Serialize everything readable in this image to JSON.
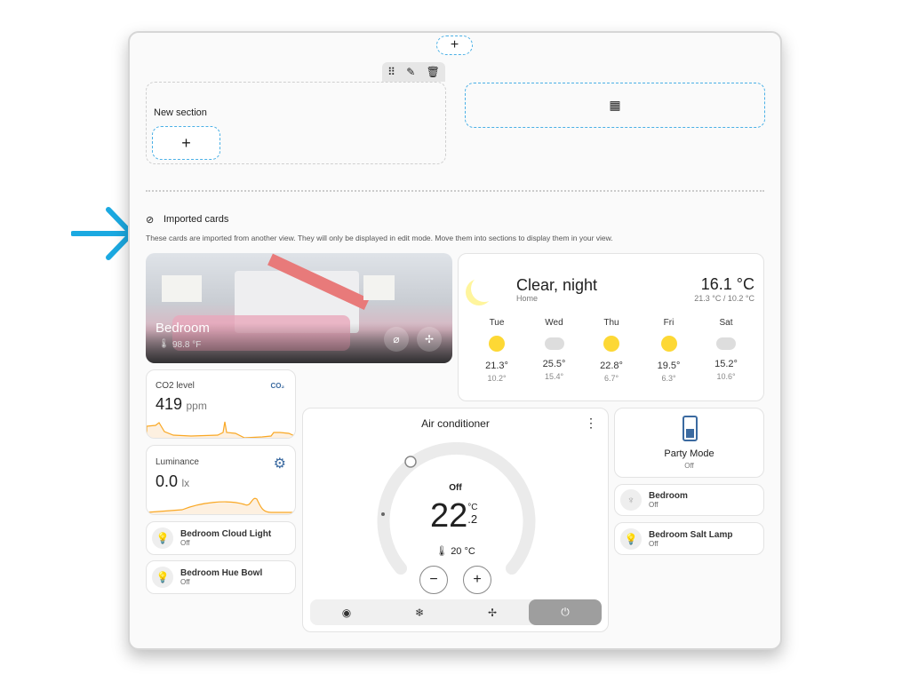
{
  "editor": {
    "add_icon": "+",
    "new_section": "New section",
    "section_add": "+",
    "toolbar": [
      "drag-handle-icon",
      "pencil-icon",
      "delete-icon"
    ],
    "add_card_icon": "dashboard-plus-icon"
  },
  "imported": {
    "title": "Imported cards",
    "description": "These cards are imported from another view. They will only be displayed in edit mode. Move them into sections to display them in your view."
  },
  "picture": {
    "name": "Bedroom",
    "temp": "98.8 °F"
  },
  "weather": {
    "condition": "Clear, night",
    "location": "Home",
    "temp": "16.1 °C",
    "range": "21.3 °C / 10.2 °C",
    "forecast": [
      {
        "day": "Tue",
        "icon": "sunny",
        "hi": "21.3°",
        "lo": "10.2°"
      },
      {
        "day": "Wed",
        "icon": "cloudy",
        "hi": "25.5°",
        "lo": "15.4°"
      },
      {
        "day": "Thu",
        "icon": "sunny",
        "hi": "22.8°",
        "lo": "6.7°"
      },
      {
        "day": "Fri",
        "icon": "sunny",
        "hi": "19.5°",
        "lo": "6.3°"
      },
      {
        "day": "Sat",
        "icon": "cloudy",
        "hi": "15.2°",
        "lo": "10.6°"
      }
    ]
  },
  "co2": {
    "label": "CO2 level",
    "value": "419",
    "unit": "ppm",
    "icon": "CO₂"
  },
  "lum": {
    "label": "Luminance",
    "value": "0.0",
    "unit": "lx"
  },
  "lights": [
    {
      "name": "Bedroom Cloud Light",
      "state": "Off"
    },
    {
      "name": "Bedroom Hue Bowl",
      "state": "Off"
    },
    {
      "name": "Bedroom",
      "state": "Off"
    },
    {
      "name": "Bedroom Salt Lamp",
      "state": "Off"
    }
  ],
  "party": {
    "name": "Party Mode",
    "state": "Off"
  },
  "ac": {
    "title": "Air conditioner",
    "state": "Off",
    "temp_int": "22",
    "temp_dec": ".2",
    "unit": "°C",
    "current": "20 °C",
    "minus": "−",
    "plus": "+",
    "menu": "⋮",
    "modes": [
      "auto-icon",
      "snowflake-icon",
      "fan-icon",
      "power-icon"
    ]
  },
  "colors": {
    "accent": "#4ab0e6",
    "chart": "#f9a825"
  }
}
